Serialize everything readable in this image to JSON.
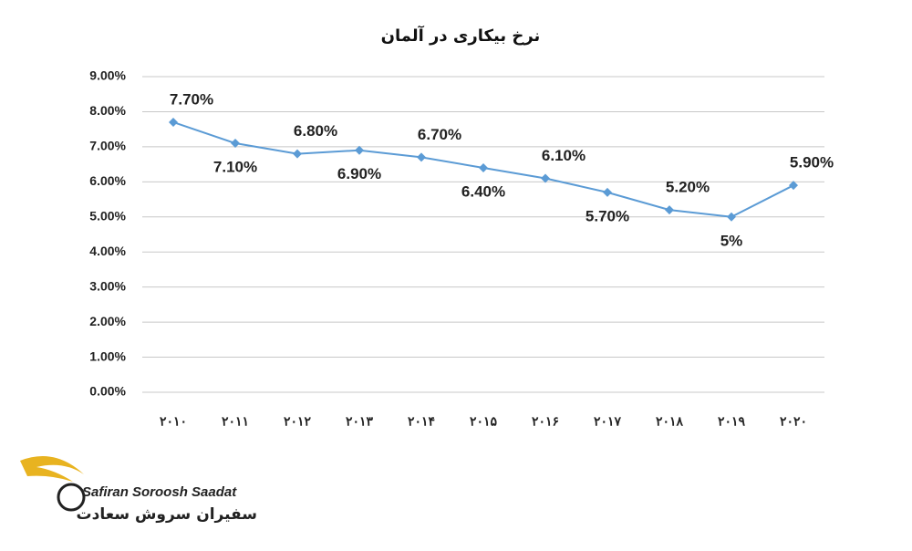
{
  "chart_data": {
    "type": "line",
    "title": "نرخ بیکاری در آلمان",
    "categories": [
      "۲۰۱۰",
      "۲۰۱۱",
      "۲۰۱۲",
      "۲۰۱۳",
      "۲۰۱۴",
      "۲۰۱۵",
      "۲۰۱۶",
      "۲۰۱۷",
      "۲۰۱۸",
      "۲۰۱۹",
      "۲۰۲۰"
    ],
    "values": [
      7.7,
      7.1,
      6.8,
      6.9,
      6.7,
      6.4,
      6.1,
      5.7,
      5.2,
      5,
      5.9
    ],
    "value_labels": [
      "7.70%",
      "7.10%",
      "6.80%",
      "6.90%",
      "6.70%",
      "6.40%",
      "6.10%",
      "5.70%",
      "5.20%",
      "5%",
      "5.90%"
    ],
    "color": "#5b9bd5",
    "ylim": [
      0,
      9
    ],
    "yticks": [
      {
        "value": 0,
        "label": "0.00%"
      },
      {
        "value": 1,
        "label": "1.00%"
      },
      {
        "value": 2,
        "label": "2.00%"
      },
      {
        "value": 3,
        "label": "3.00%"
      },
      {
        "value": 4,
        "label": "4.00%"
      },
      {
        "value": 5,
        "label": "5.00%"
      },
      {
        "value": 6,
        "label": "6.00%"
      },
      {
        "value": 7,
        "label": "7.00%"
      },
      {
        "value": 8,
        "label": "8.00%"
      },
      {
        "value": 9,
        "label": "9.00%"
      }
    ],
    "grid": true
  },
  "logo": {
    "name": "Safiran Soroosh Saadat",
    "name_fa": "سفیران سروش سعادت"
  }
}
